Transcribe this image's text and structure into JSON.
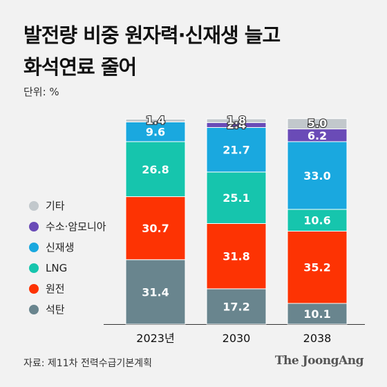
{
  "title_line1": "발전량 비중 원자력·신재생 늘고",
  "title_line2": "화석연료 줄어",
  "unit": "단위: %",
  "source": "자료: 제11차 전력수급기본계획",
  "brand": "The JoongAng",
  "colors": {
    "기타": "#c2c8cc",
    "수소·암모니아": "#6a4bb7",
    "신재생": "#1aa8df",
    "LNG": "#16c5ad",
    "원전": "#fd3303",
    "석탄": "#69858e"
  },
  "chart_data": {
    "type": "bar",
    "stacked": true,
    "categories": [
      "2023년",
      "2030",
      "2038"
    ],
    "ylim": [
      0,
      100
    ],
    "series": [
      {
        "name": "석탄",
        "values": [
          31.4,
          17.2,
          10.1
        ]
      },
      {
        "name": "원전",
        "values": [
          30.7,
          31.8,
          35.2
        ]
      },
      {
        "name": "LNG",
        "values": [
          26.8,
          25.1,
          10.6
        ]
      },
      {
        "name": "신재생",
        "values": [
          9.6,
          21.7,
          33.0
        ]
      },
      {
        "name": "수소·암모니아",
        "values": [
          0,
          2.4,
          6.2
        ]
      },
      {
        "name": "기타",
        "values": [
          1.4,
          1.8,
          5.0
        ]
      }
    ],
    "value_labels": [
      [
        "31.4",
        "17.2",
        "10.1"
      ],
      [
        "30.7",
        "31.8",
        "35.2"
      ],
      [
        "26.8",
        "25.1",
        "10.6"
      ],
      [
        "9.6",
        "21.7",
        "33.0"
      ],
      [
        "",
        "2.4",
        "6.2"
      ],
      [
        "1.4",
        "1.8",
        "5.0"
      ]
    ],
    "legend": [
      "기타",
      "수소·암모니아",
      "신재생",
      "LNG",
      "원전",
      "석탄"
    ]
  }
}
